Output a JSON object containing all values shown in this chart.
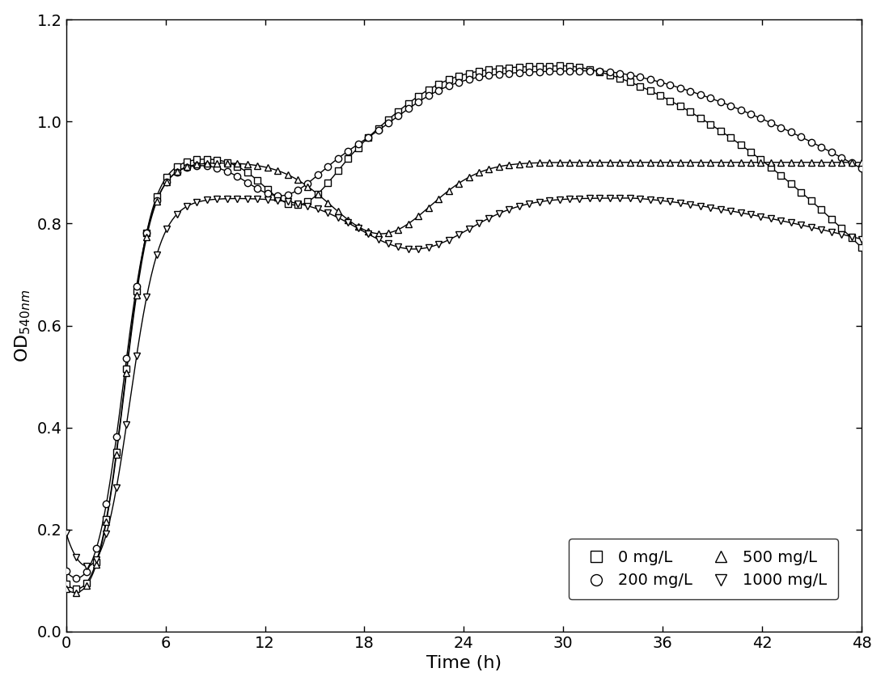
{
  "xlabel": "Time (h)",
  "ylabel": "OD$_{540nm}$",
  "xlim": [
    0,
    48
  ],
  "ylim": [
    0.0,
    1.2
  ],
  "xticks": [
    0,
    6,
    12,
    18,
    24,
    30,
    36,
    42,
    48
  ],
  "yticks": [
    0.0,
    0.2,
    0.4,
    0.6,
    0.8,
    1.0,
    1.2
  ],
  "legend_labels": [
    "0 mg/L",
    "200 mg/L",
    "500 mg/L",
    "1000 mg/L"
  ],
  "markers": [
    "s",
    "o",
    "^",
    "v"
  ],
  "background_color": "#ffffff",
  "legend_fontsize": 14,
  "axis_fontsize": 16,
  "tick_fontsize": 14,
  "markersize": 6,
  "linewidth": 1.0,
  "n_markers": 80
}
